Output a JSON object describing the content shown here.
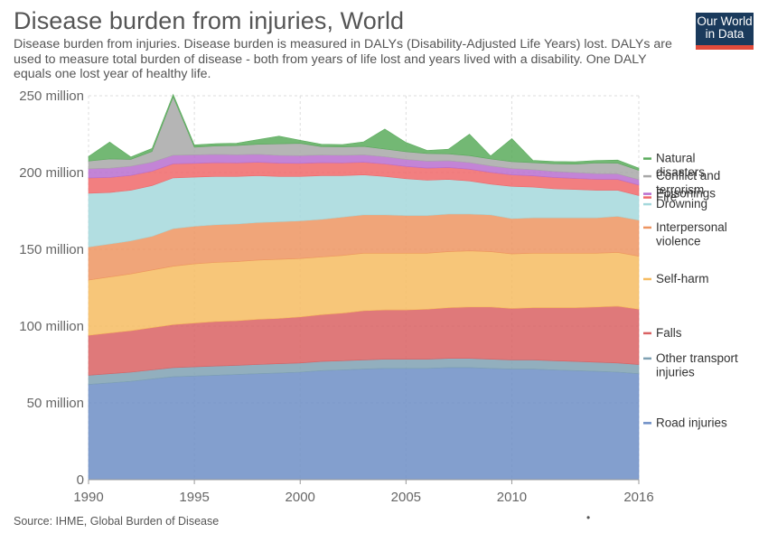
{
  "header": {
    "title": "Disease burden from injuries, World",
    "subtitle": "Disease burden from injuries. Disease burden is measured in DALYs (Disability-Adjusted Life Years) lost. DALYs are used to measure total burden of disease - both from years of life lost and years lived with a disability. One DALY equals one lost year of healthy life."
  },
  "logo": {
    "line1": "Our World",
    "line2": "in Data",
    "bg_color": "#1a3a5c",
    "accent_color": "#e24b3b"
  },
  "footer": {
    "source": "Source: IHME, Global Burden of Disease",
    "dot": "•"
  },
  "chart_data": {
    "type": "area",
    "stacked": true,
    "x": [
      1990,
      1991,
      1992,
      1993,
      1994,
      1995,
      1996,
      1997,
      1998,
      1999,
      2000,
      2001,
      2002,
      2003,
      2004,
      2005,
      2006,
      2007,
      2008,
      2009,
      2010,
      2011,
      2012,
      2013,
      2014,
      2015,
      2016
    ],
    "xticks": [
      "1990",
      "1995",
      "2000",
      "2005",
      "2010",
      "2016"
    ],
    "yticks": [
      "0",
      "50 million",
      "100 million",
      "150 million",
      "200 million",
      "250 million"
    ],
    "ylim": [
      0,
      250000000
    ],
    "grid": "horizontal dashed and vertical dashed at x ticks",
    "legend_position": "right, aligned to series ends",
    "series": [
      {
        "name": "Road injuries",
        "color": "#6d8ec6",
        "values": [
          62,
          63,
          64,
          65.5,
          67,
          67.5,
          68,
          68.5,
          69,
          69.5,
          70,
          71,
          71.5,
          72,
          72.5,
          72.5,
          72.5,
          73,
          73,
          72.5,
          72,
          72,
          71.5,
          71,
          70.5,
          70,
          69
        ]
      },
      {
        "name": "Other transport injuries",
        "color": "#7fa1b3",
        "values": [
          6,
          6,
          6,
          6,
          6,
          6,
          6,
          6,
          6,
          6,
          6,
          6,
          6,
          6,
          6,
          6,
          6,
          6,
          6,
          6,
          6,
          6,
          6,
          6,
          6,
          6,
          6
        ]
      },
      {
        "name": "Falls",
        "color": "#d96263",
        "values": [
          26,
          26.5,
          27,
          27.5,
          28,
          28.5,
          29,
          29,
          29.5,
          29.5,
          30,
          30.5,
          31,
          32,
          32,
          32,
          32.5,
          33,
          33.5,
          34,
          33.5,
          34,
          34.5,
          35,
          36,
          37,
          36
        ]
      },
      {
        "name": "Self-harm",
        "color": "#f6bc61",
        "values": [
          36,
          36.5,
          37,
          37.5,
          38,
          38.5,
          38.5,
          38.5,
          38.5,
          38.5,
          38,
          37.5,
          37.5,
          37.5,
          37,
          37,
          36.5,
          36.5,
          36.5,
          36,
          35.5,
          35.5,
          35.5,
          35.5,
          35,
          35,
          34.5
        ]
      },
      {
        "name": "Interpersonal violence",
        "color": "#ed9561",
        "values": [
          21.5,
          21.5,
          21.5,
          22,
          24.5,
          24.5,
          24.5,
          24.5,
          24.5,
          24.5,
          24.5,
          24.5,
          25,
          25,
          25,
          24.5,
          24.5,
          24.5,
          24,
          24,
          23,
          23,
          23,
          23,
          23,
          23.5,
          23.5
        ]
      },
      {
        "name": "Drowning",
        "color": "#a5d8dc",
        "values": [
          35,
          33.5,
          33,
          33,
          33,
          32,
          31.5,
          31,
          30.5,
          29.5,
          29,
          28.5,
          27,
          26,
          25,
          24,
          23,
          22.5,
          21.5,
          20,
          21,
          20,
          19,
          18.5,
          18,
          17,
          16
        ]
      },
      {
        "name": "Fire",
        "color": "#f0686a",
        "values": [
          10,
          9.8,
          9.6,
          9.4,
          9.2,
          9,
          8.9,
          8.8,
          8.7,
          8.6,
          8.5,
          8.4,
          8.3,
          8.2,
          8.1,
          8,
          7.9,
          7.8,
          7.7,
          7.6,
          7.5,
          7.4,
          7.3,
          7.2,
          7.1,
          7,
          6.9
        ]
      },
      {
        "name": "Poisonings",
        "color": "#b96ecf",
        "values": [
          6,
          6,
          6,
          5.8,
          5.6,
          5.5,
          5.4,
          5.3,
          5.2,
          5.1,
          5,
          5,
          4.9,
          4.8,
          4.7,
          4.6,
          4.5,
          4.4,
          4.3,
          4.2,
          4.1,
          4,
          3.9,
          3.8,
          3.7,
          3.6,
          3.5
        ]
      },
      {
        "name": "Conflict and terrorism",
        "color": "#a8a8a8",
        "values": [
          5,
          6,
          4.5,
          7,
          38,
          5,
          5.5,
          6,
          6.5,
          7.5,
          8,
          5.5,
          5.5,
          5.5,
          5,
          5,
          5,
          4.5,
          4.5,
          4.5,
          4.5,
          4.5,
          5,
          5.5,
          7,
          7,
          6
        ]
      },
      {
        "name": "Natural disasters",
        "color": "#5aab5c",
        "values": [
          3,
          11,
          1.5,
          2,
          1.5,
          1.5,
          1.5,
          1.5,
          3,
          5,
          2,
          1.5,
          1.5,
          3,
          13,
          6,
          2,
          3,
          14,
          2,
          15,
          1.5,
          1.5,
          1.5,
          1.5,
          2,
          1.5
        ]
      }
    ],
    "units": "million DALYs"
  }
}
